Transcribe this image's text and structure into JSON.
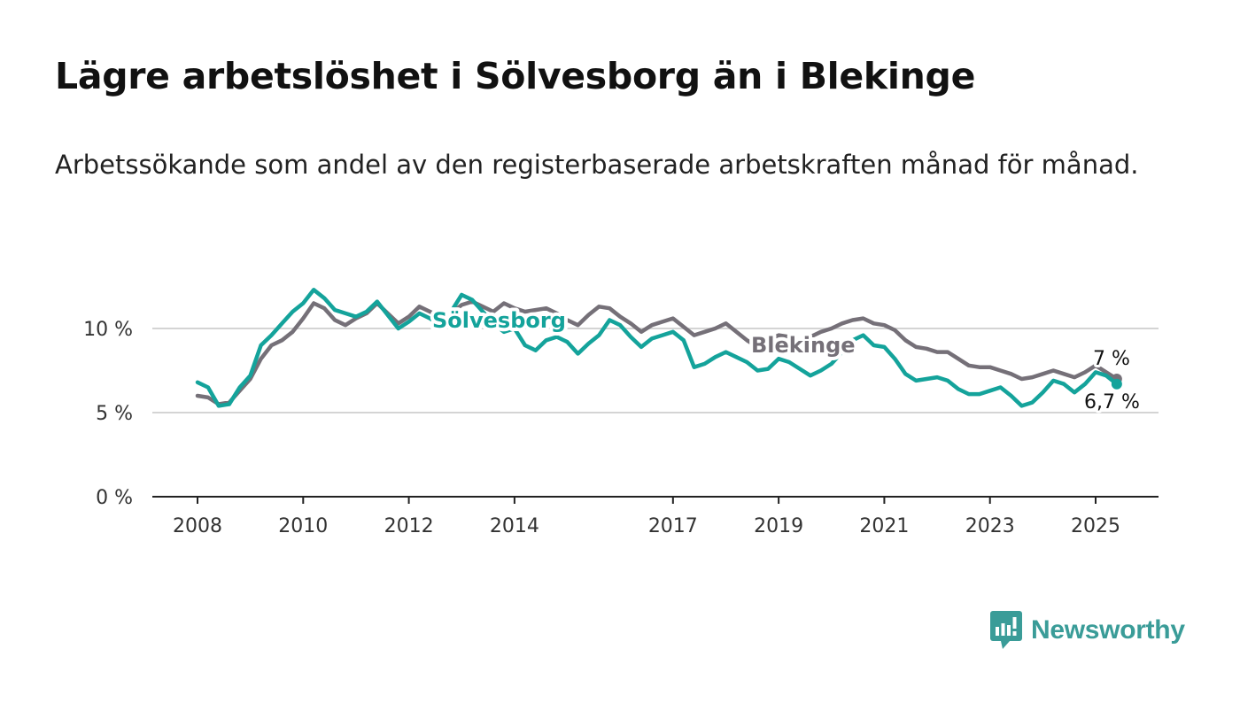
{
  "title": "Lägre arbetslöshet i Sölvesborg än i Blekinge",
  "subtitle": "Arbetssökande som andel av den registerbaserade arbetskraften månad för månad.",
  "brand": {
    "name": "Newsworthy",
    "color": "#3a9c98",
    "icon": "newsworthy-logo-icon"
  },
  "chart_data": {
    "type": "line",
    "ylim": [
      0,
      13
    ],
    "xlim": [
      2008,
      2026.2
    ],
    "yticks": [
      {
        "value": 0,
        "label": "0 %"
      },
      {
        "value": 5,
        "label": "5 %"
      },
      {
        "value": 10,
        "label": "10 %"
      }
    ],
    "xticks": [
      {
        "value": 2008,
        "label": "2008"
      },
      {
        "value": 2010,
        "label": "2010"
      },
      {
        "value": 2012,
        "label": "2012"
      },
      {
        "value": 2014,
        "label": "2014"
      },
      {
        "value": 2017,
        "label": "2017"
      },
      {
        "value": 2019,
        "label": "2019"
      },
      {
        "value": 2021,
        "label": "2021"
      },
      {
        "value": 2023,
        "label": "2023"
      },
      {
        "value": 2025,
        "label": "2025"
      }
    ],
    "grid": true,
    "series": [
      {
        "name": "Blekinge",
        "color": "#757078",
        "end_label": "7 %",
        "points": [
          [
            2008.0,
            6.0
          ],
          [
            2008.2,
            5.9
          ],
          [
            2008.4,
            5.5
          ],
          [
            2008.6,
            5.6
          ],
          [
            2008.8,
            6.3
          ],
          [
            2009.0,
            7.0
          ],
          [
            2009.2,
            8.2
          ],
          [
            2009.4,
            9.0
          ],
          [
            2009.6,
            9.3
          ],
          [
            2009.8,
            9.8
          ],
          [
            2010.0,
            10.6
          ],
          [
            2010.2,
            11.5
          ],
          [
            2010.4,
            11.2
          ],
          [
            2010.6,
            10.5
          ],
          [
            2010.8,
            10.2
          ],
          [
            2011.0,
            10.6
          ],
          [
            2011.2,
            10.9
          ],
          [
            2011.4,
            11.5
          ],
          [
            2011.6,
            10.9
          ],
          [
            2011.8,
            10.3
          ],
          [
            2012.0,
            10.7
          ],
          [
            2012.2,
            11.3
          ],
          [
            2012.4,
            11.0
          ],
          [
            2012.6,
            10.7
          ],
          [
            2012.8,
            10.9
          ],
          [
            2013.0,
            11.4
          ],
          [
            2013.2,
            11.6
          ],
          [
            2013.4,
            11.3
          ],
          [
            2013.6,
            11.0
          ],
          [
            2013.8,
            11.5
          ],
          [
            2014.0,
            11.2
          ],
          [
            2014.2,
            11.0
          ],
          [
            2014.4,
            11.1
          ],
          [
            2014.6,
            11.2
          ],
          [
            2014.8,
            10.9
          ],
          [
            2015.0,
            10.5
          ],
          [
            2015.2,
            10.2
          ],
          [
            2015.4,
            10.8
          ],
          [
            2015.6,
            11.3
          ],
          [
            2015.8,
            11.2
          ],
          [
            2016.0,
            10.7
          ],
          [
            2016.2,
            10.3
          ],
          [
            2016.4,
            9.8
          ],
          [
            2016.6,
            10.2
          ],
          [
            2016.8,
            10.4
          ],
          [
            2017.0,
            10.6
          ],
          [
            2017.2,
            10.1
          ],
          [
            2017.4,
            9.6
          ],
          [
            2017.6,
            9.8
          ],
          [
            2017.8,
            10.0
          ],
          [
            2018.0,
            10.3
          ],
          [
            2018.2,
            9.8
          ],
          [
            2018.4,
            9.3
          ],
          [
            2018.6,
            8.9
          ],
          [
            2018.8,
            9.3
          ],
          [
            2019.0,
            9.6
          ],
          [
            2019.2,
            9.5
          ],
          [
            2019.4,
            9.3
          ],
          [
            2019.6,
            9.5
          ],
          [
            2019.8,
            9.8
          ],
          [
            2020.0,
            10.0
          ],
          [
            2020.2,
            10.3
          ],
          [
            2020.4,
            10.5
          ],
          [
            2020.6,
            10.6
          ],
          [
            2020.8,
            10.3
          ],
          [
            2021.0,
            10.2
          ],
          [
            2021.2,
            9.9
          ],
          [
            2021.4,
            9.3
          ],
          [
            2021.6,
            8.9
          ],
          [
            2021.8,
            8.8
          ],
          [
            2022.0,
            8.6
          ],
          [
            2022.2,
            8.6
          ],
          [
            2022.4,
            8.2
          ],
          [
            2022.6,
            7.8
          ],
          [
            2022.8,
            7.7
          ],
          [
            2023.0,
            7.7
          ],
          [
            2023.2,
            7.5
          ],
          [
            2023.4,
            7.3
          ],
          [
            2023.6,
            7.0
          ],
          [
            2023.8,
            7.1
          ],
          [
            2024.0,
            7.3
          ],
          [
            2024.2,
            7.5
          ],
          [
            2024.4,
            7.3
          ],
          [
            2024.6,
            7.1
          ],
          [
            2024.8,
            7.4
          ],
          [
            2025.0,
            7.8
          ],
          [
            2025.2,
            7.4
          ],
          [
            2025.4,
            7.0
          ]
        ]
      },
      {
        "name": "Sölvesborg",
        "color": "#14a39b",
        "end_label": "6,7 %",
        "points": [
          [
            2008.0,
            6.8
          ],
          [
            2008.2,
            6.5
          ],
          [
            2008.4,
            5.4
          ],
          [
            2008.6,
            5.5
          ],
          [
            2008.8,
            6.5
          ],
          [
            2009.0,
            7.2
          ],
          [
            2009.2,
            9.0
          ],
          [
            2009.4,
            9.6
          ],
          [
            2009.6,
            10.3
          ],
          [
            2009.8,
            11.0
          ],
          [
            2010.0,
            11.5
          ],
          [
            2010.2,
            12.3
          ],
          [
            2010.4,
            11.8
          ],
          [
            2010.6,
            11.1
          ],
          [
            2010.8,
            10.9
          ],
          [
            2011.0,
            10.7
          ],
          [
            2011.2,
            11.0
          ],
          [
            2011.4,
            11.6
          ],
          [
            2011.6,
            10.8
          ],
          [
            2011.8,
            10.0
          ],
          [
            2012.0,
            10.4
          ],
          [
            2012.2,
            10.9
          ],
          [
            2012.4,
            10.6
          ],
          [
            2012.6,
            10.2
          ],
          [
            2012.8,
            11.0
          ],
          [
            2013.0,
            12.0
          ],
          [
            2013.2,
            11.7
          ],
          [
            2013.4,
            11.0
          ],
          [
            2013.6,
            10.3
          ],
          [
            2013.8,
            9.8
          ],
          [
            2014.0,
            10.0
          ],
          [
            2014.2,
            9.0
          ],
          [
            2014.4,
            8.7
          ],
          [
            2014.6,
            9.3
          ],
          [
            2014.8,
            9.5
          ],
          [
            2015.0,
            9.2
          ],
          [
            2015.2,
            8.5
          ],
          [
            2015.4,
            9.1
          ],
          [
            2015.6,
            9.6
          ],
          [
            2015.8,
            10.5
          ],
          [
            2016.0,
            10.2
          ],
          [
            2016.2,
            9.5
          ],
          [
            2016.4,
            8.9
          ],
          [
            2016.6,
            9.4
          ],
          [
            2016.8,
            9.6
          ],
          [
            2017.0,
            9.8
          ],
          [
            2017.2,
            9.3
          ],
          [
            2017.4,
            7.7
          ],
          [
            2017.6,
            7.9
          ],
          [
            2017.8,
            8.3
          ],
          [
            2018.0,
            8.6
          ],
          [
            2018.2,
            8.3
          ],
          [
            2018.4,
            8.0
          ],
          [
            2018.6,
            7.5
          ],
          [
            2018.8,
            7.6
          ],
          [
            2019.0,
            8.2
          ],
          [
            2019.2,
            8.0
          ],
          [
            2019.4,
            7.6
          ],
          [
            2019.6,
            7.2
          ],
          [
            2019.8,
            7.5
          ],
          [
            2020.0,
            7.9
          ],
          [
            2020.2,
            8.6
          ],
          [
            2020.4,
            9.3
          ],
          [
            2020.6,
            9.6
          ],
          [
            2020.8,
            9.0
          ],
          [
            2021.0,
            8.9
          ],
          [
            2021.2,
            8.2
          ],
          [
            2021.4,
            7.3
          ],
          [
            2021.6,
            6.9
          ],
          [
            2021.8,
            7.0
          ],
          [
            2022.0,
            7.1
          ],
          [
            2022.2,
            6.9
          ],
          [
            2022.4,
            6.4
          ],
          [
            2022.6,
            6.1
          ],
          [
            2022.8,
            6.1
          ],
          [
            2023.0,
            6.3
          ],
          [
            2023.2,
            6.5
          ],
          [
            2023.4,
            6.0
          ],
          [
            2023.6,
            5.4
          ],
          [
            2023.8,
            5.6
          ],
          [
            2024.0,
            6.2
          ],
          [
            2024.2,
            6.9
          ],
          [
            2024.4,
            6.7
          ],
          [
            2024.6,
            6.2
          ],
          [
            2024.8,
            6.7
          ],
          [
            2025.0,
            7.4
          ],
          [
            2025.2,
            7.2
          ],
          [
            2025.4,
            6.7
          ]
        ]
      }
    ]
  }
}
